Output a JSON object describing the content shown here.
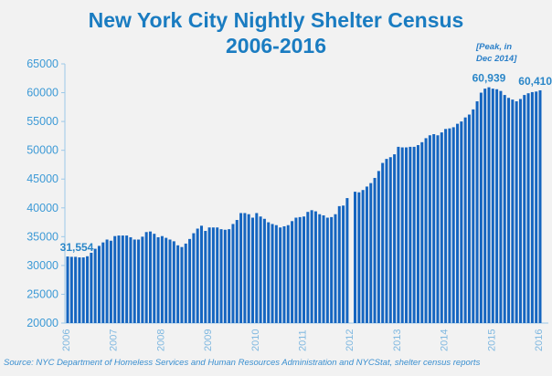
{
  "chart_data": {
    "type": "bar",
    "title": "New York City Nightly Shelter Census",
    "subtitle": "2006-2016",
    "xlabel": "",
    "ylabel": "",
    "ylim": [
      20000,
      65000
    ],
    "yticks": [
      "20000",
      "25000",
      "30000",
      "35000",
      "40000",
      "45000",
      "50000",
      "55000",
      "60000",
      "65000"
    ],
    "xticks": [
      "2006",
      "2007",
      "2008",
      "2009",
      "2010",
      "2011",
      "2012",
      "2013",
      "2014",
      "2015",
      "2016"
    ],
    "x_start": "Jan 2006",
    "frequency": "monthly",
    "values": [
      31554,
      31500,
      31500,
      31400,
      31400,
      31600,
      32200,
      32900,
      33400,
      34000,
      34500,
      34300,
      35100,
      35200,
      35200,
      35200,
      34900,
      34500,
      34500,
      35000,
      35800,
      35900,
      35500,
      34900,
      35100,
      34800,
      34500,
      34200,
      33500,
      33200,
      33800,
      34600,
      35600,
      36400,
      36900,
      36000,
      36600,
      36600,
      36600,
      36300,
      36200,
      36300,
      37200,
      37900,
      39100,
      39100,
      38900,
      38300,
      39100,
      38500,
      38100,
      37500,
      37200,
      37000,
      36600,
      36800,
      37000,
      37700,
      38300,
      38400,
      38500,
      39300,
      39600,
      39400,
      38900,
      38700,
      38300,
      38400,
      38900,
      40300,
      40400,
      41700,
      null,
      42800,
      42700,
      43100,
      43700,
      44300,
      45200,
      46400,
      47800,
      48500,
      48800,
      49300,
      50600,
      50500,
      50500,
      50600,
      50600,
      50900,
      51400,
      52100,
      52600,
      52800,
      52600,
      53100,
      53700,
      53800,
      54000,
      54600,
      55000,
      55700,
      56200,
      57100,
      58500,
      60000,
      60700,
      60939,
      60700,
      60600,
      60300,
      59600,
      59100,
      58800,
      58500,
      58900,
      59600,
      59900,
      60100,
      60200,
      60410
    ],
    "data_labels": [
      {
        "index": 0,
        "text": "31,554"
      },
      {
        "index": 107,
        "text": "60,939"
      },
      {
        "index": 120,
        "text": "60,410"
      }
    ],
    "annotation": [
      "[Peak, in",
      "Dec 2014]"
    ],
    "grid": false,
    "colors": {
      "bar": "#1565c0",
      "text": "#1a7cc1",
      "tick": "#3d9ad6"
    }
  },
  "title_line1": "New York City Nightly Shelter Census",
  "title_line2": "2006-2016",
  "source": "Source:  NYC Department of Homeless Services and Human Resources Administration and NYCStat, shelter census reports"
}
